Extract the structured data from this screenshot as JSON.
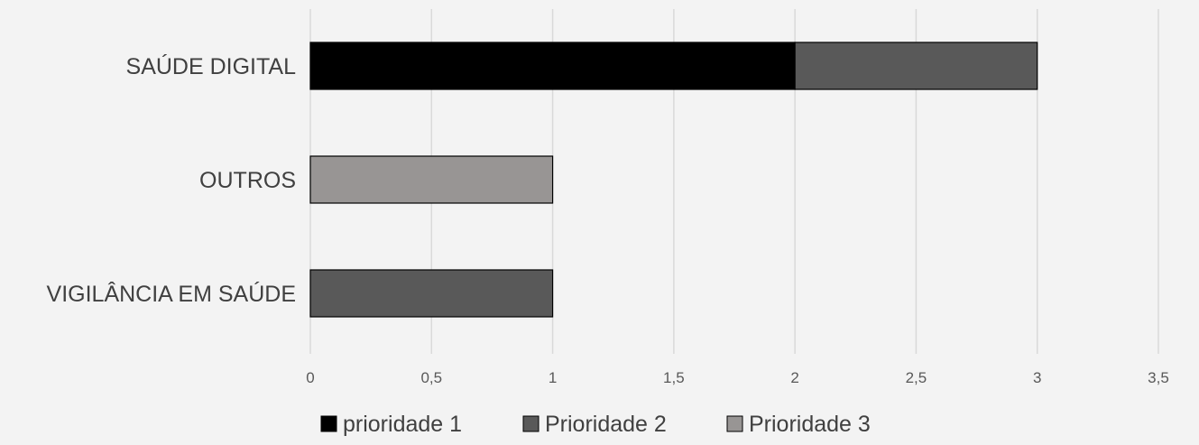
{
  "chart_data": {
    "type": "bar",
    "orientation": "horizontal",
    "stacked": true,
    "categories": [
      "SAÚDE DIGITAL",
      "OUTROS",
      "VIGILÂNCIA EM SAÚDE"
    ],
    "series": [
      {
        "name": "prioridade 1",
        "values": [
          2,
          0,
          0
        ],
        "color": "#000000"
      },
      {
        "name": "Prioridade 2",
        "values": [
          1,
          0,
          1
        ],
        "color": "#595959"
      },
      {
        "name": "Prioridade 3",
        "values": [
          0,
          1,
          0
        ],
        "color": "#989594"
      }
    ],
    "xlim": [
      0,
      3.5
    ],
    "x_ticks": [
      "0",
      "0,5",
      "1",
      "1,5",
      "2",
      "2,5",
      "3",
      "3,5"
    ],
    "grid": true,
    "legend_position": "bottom"
  }
}
